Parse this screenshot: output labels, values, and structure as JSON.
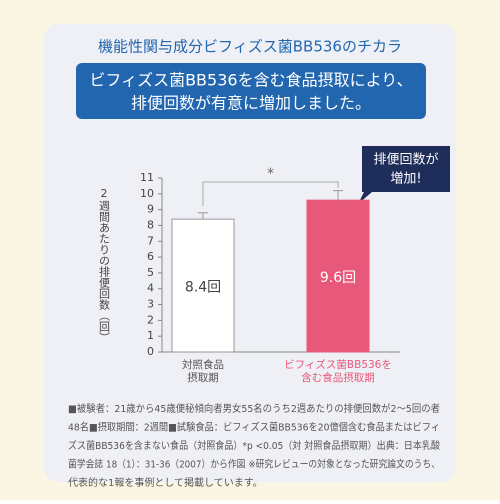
{
  "chart_data": {
    "type": "bar",
    "title": "機能性関与成分ビフィズス菌BB536のチカラ",
    "banner": [
      "ビフィズス菌BB536を含む食品摂取により、",
      "排便回数が有意に増加しました。"
    ],
    "y_label": "2週間あたりの排便回数（回）",
    "categories": [
      [
        "対照食品",
        "摂取期"
      ],
      [
        "ビフィズス菌BB536を",
        "含む食品摂取期"
      ]
    ],
    "values": [
      8.4,
      9.6
    ],
    "value_labels": [
      "8.4回",
      "9.6回"
    ],
    "errors": [
      0.4,
      0.6
    ],
    "colors": [
      "#ffffff",
      "#e8587a"
    ],
    "label_colors": [
      "#555555",
      "#e8587a"
    ],
    "significance": "*",
    "callout": [
      "排便回数が",
      "増加!"
    ],
    "ylim": [
      0,
      11
    ],
    "yticks": [
      0,
      1,
      2,
      3,
      4,
      5,
      6,
      7,
      8,
      9,
      10,
      11
    ],
    "footnote": [
      "■被験者：21歳から45歳便秘傾向者男女55名のうち2週あたりの排便回数が2～5回の者",
      "48名■摂取期間：2週間■試験食品：ビフィズス菌BB536を20億個含む食品またはビフィ",
      "ズス菌BB536を含まない食品（対照食品）*p <0.05（対 対照食品摂取期）出典：日本乳酸",
      "菌学会誌 18（1）：31-36（2007）から作図 ※研究レビューの対象となった研究論文のうち、",
      "代表的な1報を事例として掲載しています。"
    ]
  }
}
